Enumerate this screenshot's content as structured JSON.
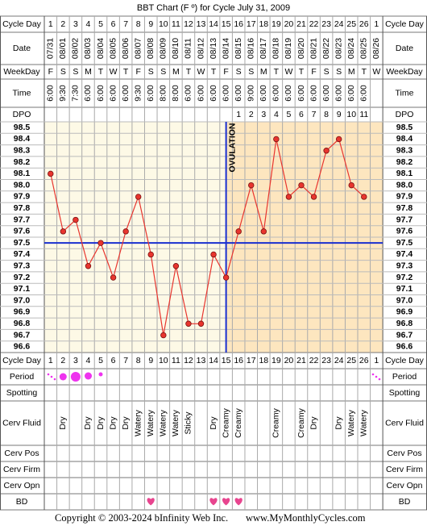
{
  "title": "BBT Chart (F º) for Cycle July 31, 2009",
  "rows_top": [
    "Cycle Day",
    "Date",
    "WeekDay",
    "Time",
    "DPO"
  ],
  "rows_bottom": [
    "Cycle Day",
    "Period",
    "Spotting",
    "Cerv Fluid",
    "Cerv Pos",
    "Cerv Firm",
    "Cerv Opn",
    "BD"
  ],
  "cycle_days": [
    1,
    2,
    3,
    4,
    5,
    6,
    7,
    8,
    9,
    10,
    11,
    12,
    13,
    14,
    15,
    16,
    17,
    18,
    19,
    20,
    21,
    22,
    23,
    24,
    25,
    26,
    1
  ],
  "dates": [
    "07/31",
    "08/01",
    "08/02",
    "08/03",
    "08/04",
    "08/05",
    "08/06",
    "08/07",
    "08/08",
    "08/09",
    "08/10",
    "08/11",
    "08/12",
    "08/13",
    "08/14",
    "08/15",
    "08/16",
    "08/17",
    "08/18",
    "08/19",
    "08/20",
    "08/21",
    "08/22",
    "08/23",
    "08/24",
    "08/25",
    "08/26"
  ],
  "weekdays": [
    "F",
    "S",
    "S",
    "M",
    "T",
    "W",
    "T",
    "F",
    "S",
    "S",
    "M",
    "T",
    "W",
    "T",
    "F",
    "S",
    "S",
    "M",
    "T",
    "W",
    "T",
    "F",
    "S",
    "S",
    "M",
    "T",
    "W"
  ],
  "times": [
    "6:00",
    "9:30",
    "7:30",
    "6:00",
    "6:00",
    "6:00",
    "6:00",
    "9:30",
    "6:00",
    "8:00",
    "8:00",
    "6:00",
    "6:00",
    "6:00",
    "6:00",
    "6:00",
    "9:00",
    "6:00",
    "6:00",
    "6:00",
    "6:00",
    "6:00",
    "6:00",
    "6:00",
    "6:00",
    "6:00",
    null
  ],
  "dpo": [
    null,
    null,
    null,
    null,
    null,
    null,
    null,
    null,
    null,
    null,
    null,
    null,
    null,
    null,
    null,
    1,
    2,
    3,
    4,
    5,
    6,
    7,
    8,
    9,
    10,
    11,
    null
  ],
  "cerv_fluid": [
    null,
    "Dry",
    null,
    "Dry",
    "Dry",
    "Dry",
    "Dry",
    "Watery",
    "Watery",
    "Watery",
    "Watery",
    "Sticky",
    null,
    "Dry",
    "Creamy",
    "Creamy",
    null,
    null,
    "Creamy",
    null,
    "Creamy",
    "Dry",
    null,
    "Dry",
    "Watery",
    "Watery",
    null
  ],
  "chart_data": {
    "type": "line",
    "ylim": [
      96.55,
      98.55
    ],
    "yticks": [
      96.6,
      96.7,
      96.8,
      96.9,
      {
        "value": 97,
        "label": "97.0"
      },
      97.1,
      97.2,
      97.3,
      97.4,
      97.5,
      97.6,
      97.7,
      97.8,
      97.9,
      {
        "value": 98,
        "label": "98.0"
      },
      98.1,
      98.2,
      98.3,
      98.4,
      98.5
    ],
    "series": [
      {
        "color": "#e8352e",
        "values": [
          98.1,
          97.6,
          97.7,
          97.3,
          97.5,
          97.2,
          97.6,
          97.9,
          97.4,
          96.7,
          97.3,
          96.8,
          96.8,
          97.4,
          97.2,
          97.6,
          98.0,
          97.6,
          98.4,
          97.9,
          98.0,
          97.9,
          98.3,
          98.4,
          98.0,
          97.9,
          null
        ]
      }
    ],
    "coverline": 97.5,
    "ovulation_day": 15,
    "ovulation_label": "OVULATION",
    "grid": true
  },
  "copyright": "Copyright © 2003-2024 bInfinity Web Inc.",
  "website": "www.MyMonthlyCycles.com"
}
